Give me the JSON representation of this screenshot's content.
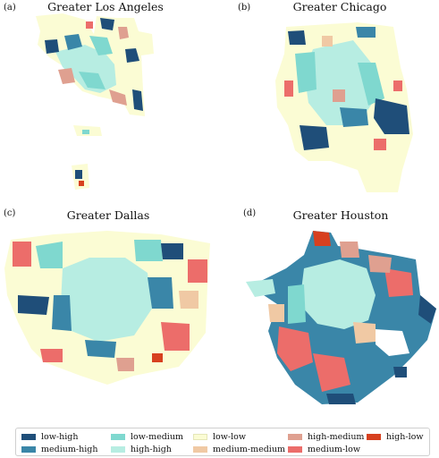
{
  "panels": [
    {
      "letter": "(a)",
      "title": "Greater Los Angeles"
    },
    {
      "letter": "(b)",
      "title": "Greater Chicago"
    },
    {
      "letter": "(c)",
      "title": "Greater Dallas"
    },
    {
      "letter": "(d)",
      "title": "Greater Houston"
    }
  ],
  "legend": [
    {
      "label": "low-high",
      "color": "#1f4e79"
    },
    {
      "label": "medium-high",
      "color": "#3a86a8"
    },
    {
      "label": "low-medium",
      "color": "#7fd8cf"
    },
    {
      "label": "high-high",
      "color": "#b7ede2"
    },
    {
      "label": "low-low",
      "color": "#fbfcd4"
    },
    {
      "label": "medium-medium",
      "color": "#f0c9a4"
    },
    {
      "label": "high-medium",
      "color": "#dfa090"
    },
    {
      "label": "medium-low",
      "color": "#ec6d6a"
    },
    {
      "label": "high-low",
      "color": "#d7401f"
    }
  ]
}
